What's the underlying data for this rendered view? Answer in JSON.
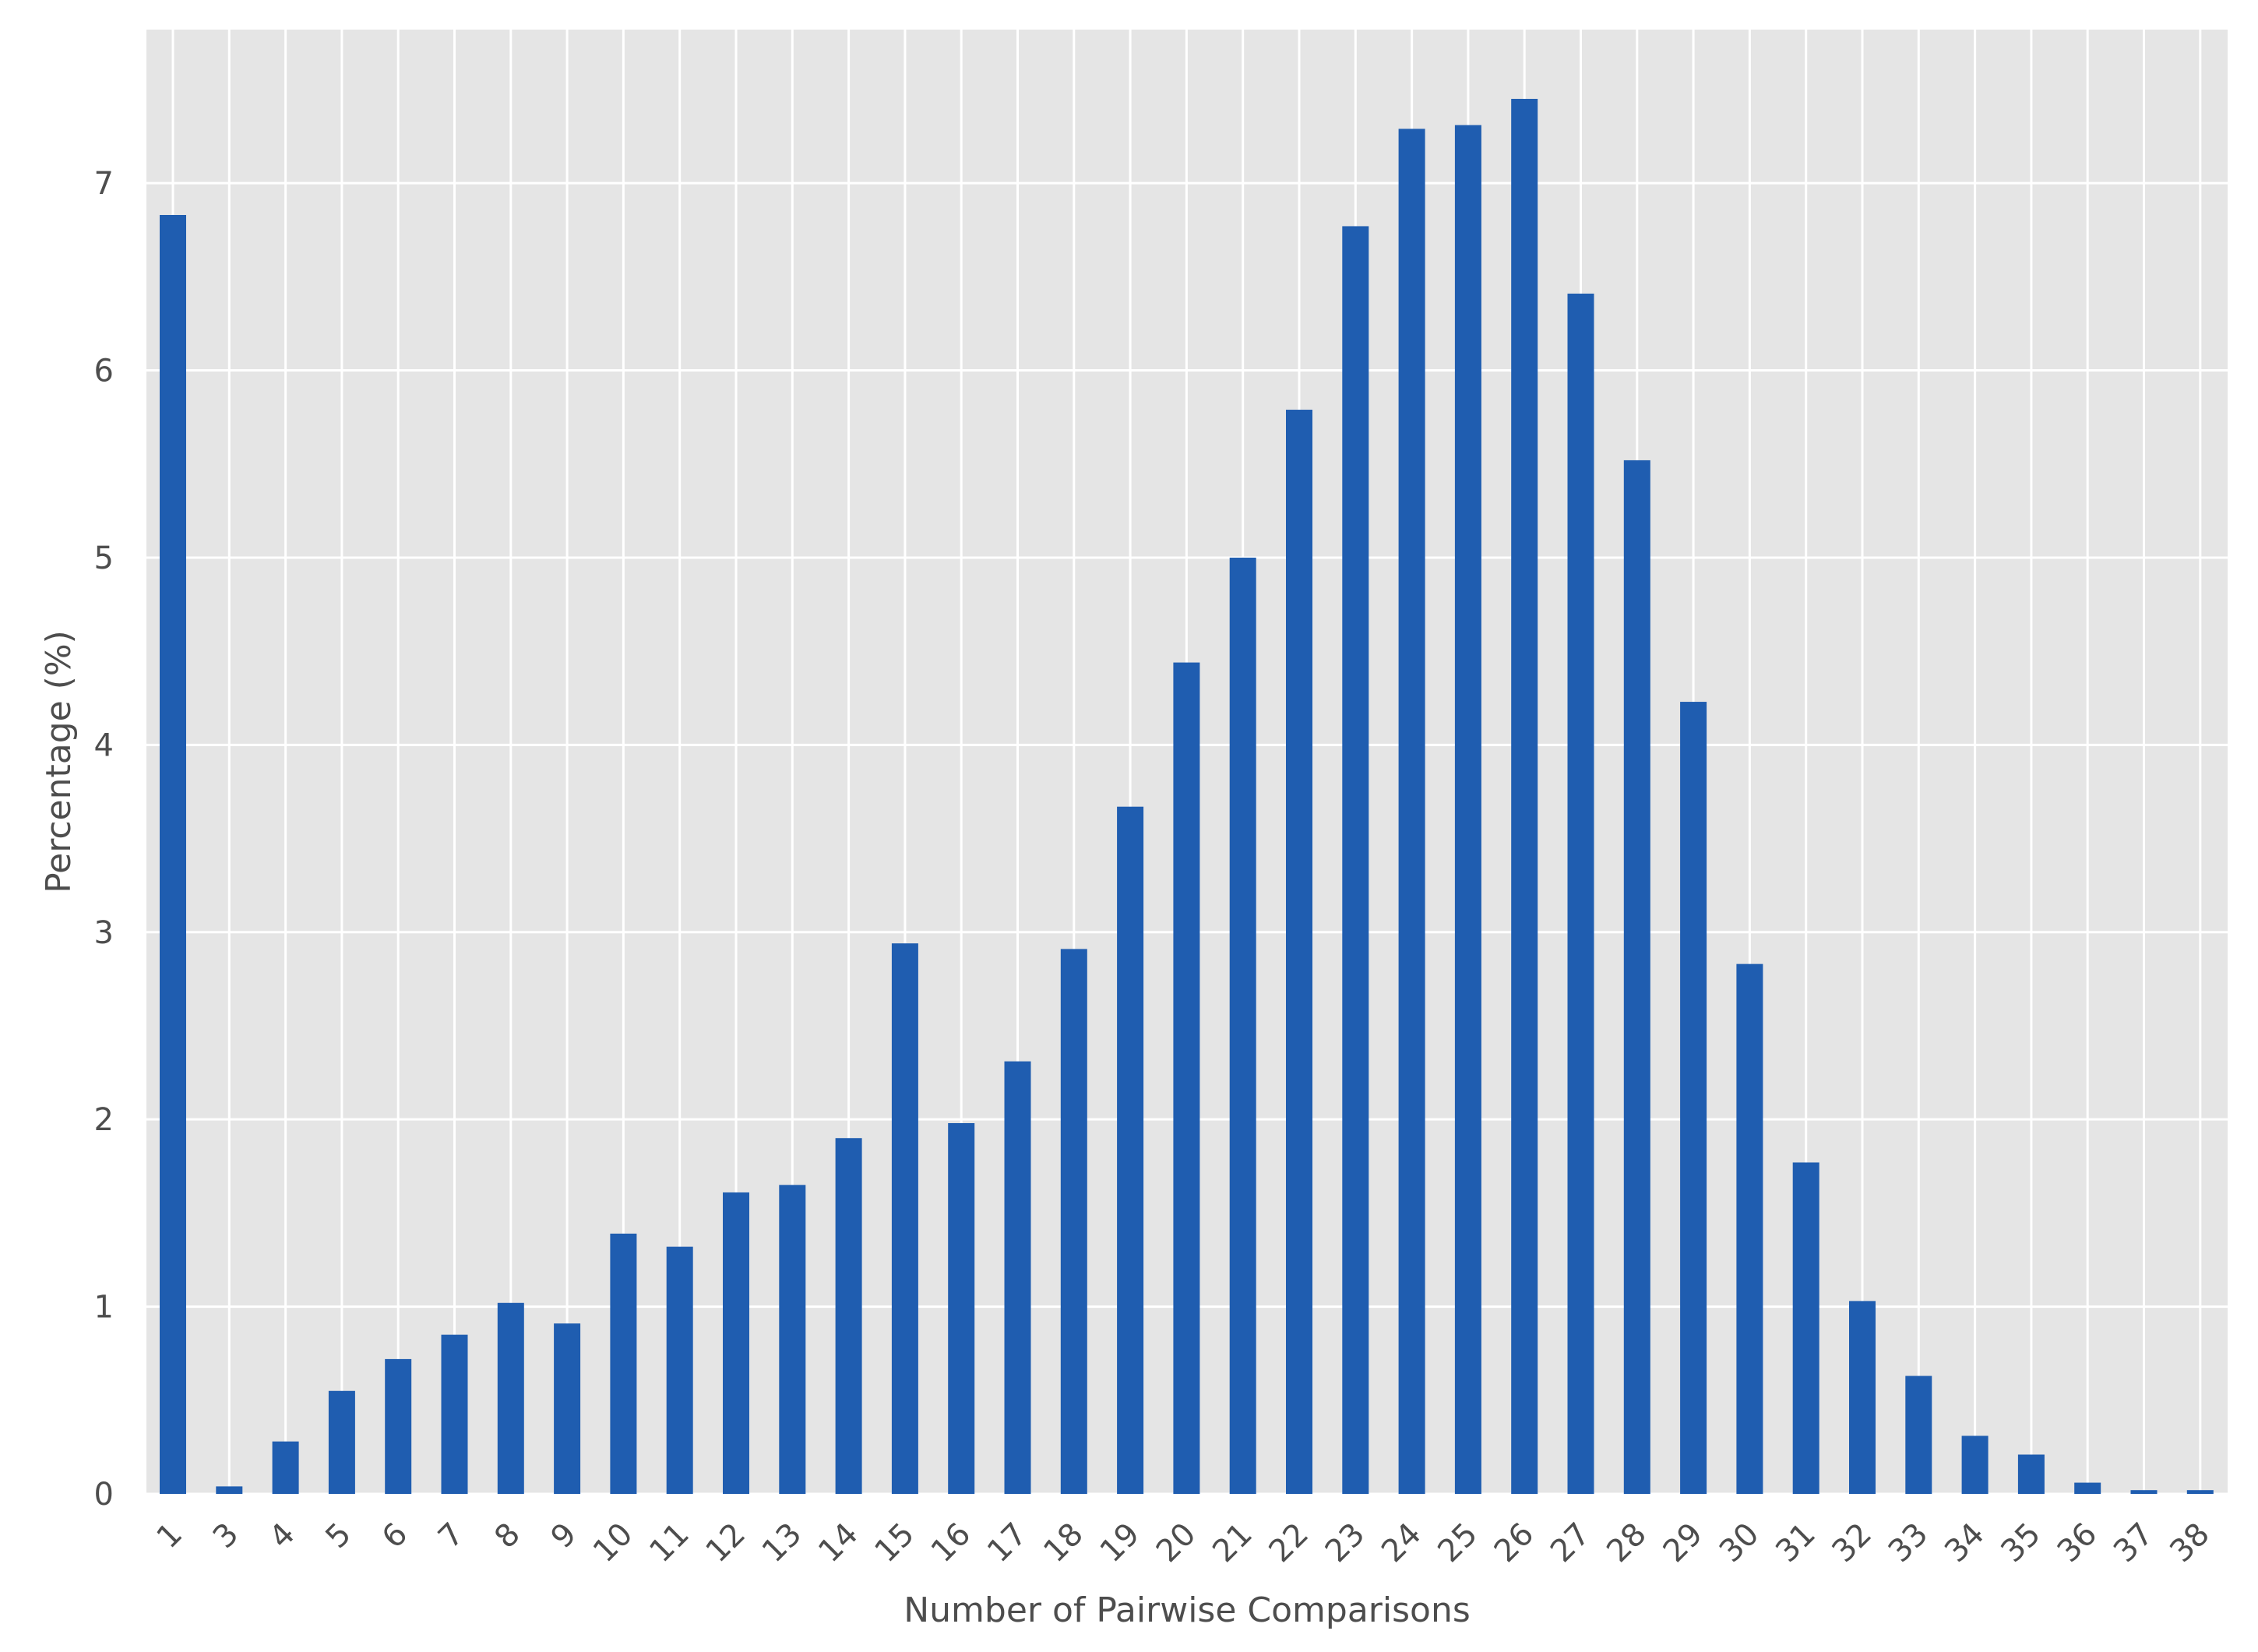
{
  "chart_data": {
    "type": "bar",
    "title": "",
    "xlabel": "Number of Pairwise Comparisons",
    "ylabel": "Percentage (%)",
    "categories": [
      "1",
      "3",
      "4",
      "5",
      "6",
      "7",
      "8",
      "9",
      "10",
      "11",
      "12",
      "13",
      "14",
      "15",
      "16",
      "17",
      "18",
      "19",
      "20",
      "21",
      "22",
      "23",
      "24",
      "25",
      "26",
      "27",
      "28",
      "29",
      "30",
      "31",
      "32",
      "33",
      "34",
      "35",
      "36",
      "37",
      "38"
    ],
    "values": [
      6.83,
      0.04,
      0.28,
      0.55,
      0.72,
      0.85,
      1.02,
      0.91,
      1.39,
      1.32,
      1.61,
      1.65,
      1.9,
      2.94,
      1.98,
      2.31,
      2.91,
      3.67,
      4.44,
      5.0,
      5.79,
      6.77,
      7.29,
      7.31,
      7.45,
      6.41,
      5.52,
      4.23,
      2.83,
      1.77,
      1.03,
      0.63,
      0.31,
      0.21,
      0.06,
      0.02,
      0.02
    ],
    "ylim": [
      0,
      7.82
    ],
    "yticks": [
      "0",
      "1",
      "2",
      "3",
      "4",
      "5",
      "6",
      "7"
    ],
    "grid": true,
    "colors": {
      "bar": "#1f5db0",
      "plot_background": "#e5e5e5",
      "grid": "#ffffff",
      "text": "#4d4d4d"
    }
  }
}
